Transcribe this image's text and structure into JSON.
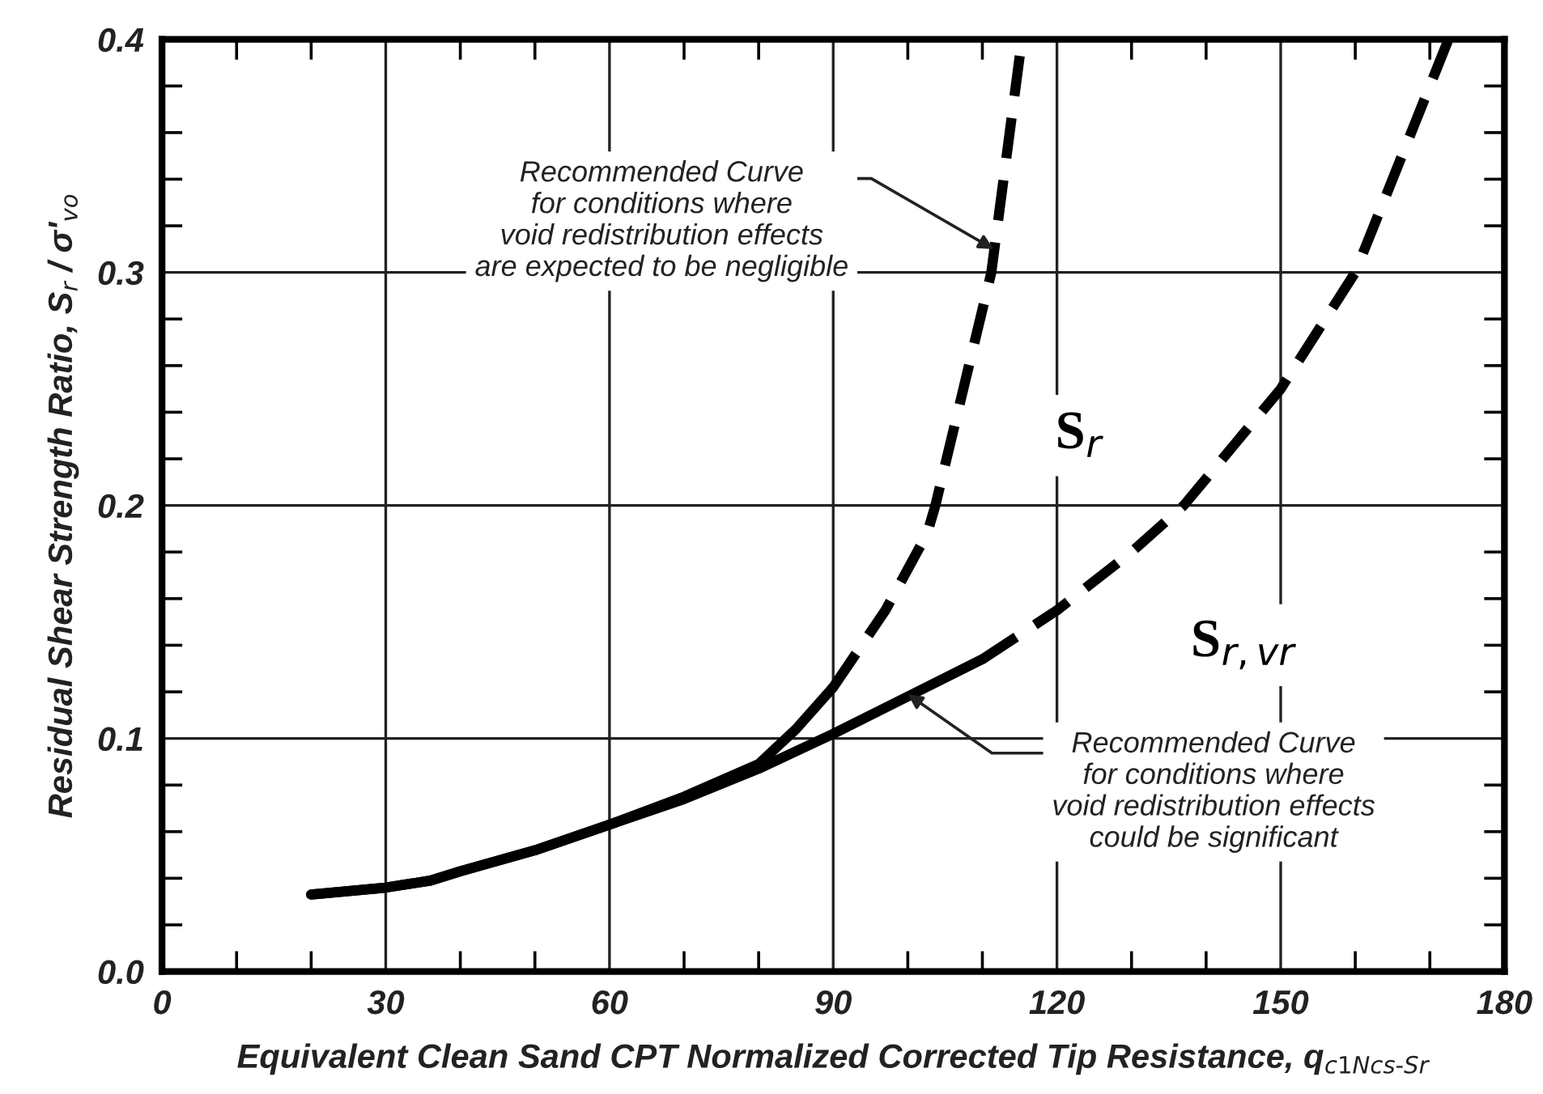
{
  "chart_data": {
    "type": "line",
    "xlabel": "Equivalent Clean Sand CPT Normalized Corrected Tip Resistance, q$_{c1Ncs‐Sr}$",
    "ylabel": "Residual Shear Strength Ratio, S$_{r}$ / σ'$_{vo}$",
    "xlim": [
      0,
      180
    ],
    "ylim": [
      0.0,
      0.4
    ],
    "xticks": [
      0,
      30,
      60,
      90,
      120,
      150,
      180
    ],
    "yticks": [
      {
        "value": 0.0,
        "label": "0.0"
      },
      0.1,
      0.2,
      0.3,
      0.4
    ],
    "grid": true,
    "legend": false,
    "series": [
      {
        "color": "#000000",
        "line_style": "solid",
        "x": [
          20,
          30,
          36,
          40,
          50,
          60,
          70,
          80,
          85,
          90
        ],
        "values": [
          0.033,
          0.036,
          0.039,
          0.043,
          0.052,
          0.063,
          0.075,
          0.089,
          0.104,
          0.122
        ]
      },
      {
        "color": "#000000",
        "line_style": "dashed",
        "x": [
          90,
          97,
          102.6,
          103.7,
          111.2,
          115.3
        ],
        "values": [
          0.122,
          0.155,
          0.188,
          0.2,
          0.3,
          0.4
        ]
      },
      {
        "color": "#000000",
        "line_style": "solid",
        "x": [
          20,
          30,
          36,
          40,
          50,
          60,
          70,
          80,
          90,
          100,
          110
        ],
        "values": [
          0.033,
          0.036,
          0.039,
          0.043,
          0.052,
          0.063,
          0.074,
          0.087,
          0.102,
          0.118,
          0.134
        ]
      },
      {
        "color": "#000000",
        "line_style": "dashed",
        "x": [
          110,
          120,
          130,
          137,
          150,
          160,
          172.5
        ],
        "values": [
          0.134,
          0.155,
          0.18,
          0.2,
          0.25,
          0.3,
          0.4
        ]
      }
    ],
    "annotations": [
      {
        "text": "Recommended Curve\nfor conditions where\nvoid redistribution effects\nare expected to be negligible",
        "x": 111.5,
        "y": 0.31
      },
      {
        "text": "Recommended Curve\nfor conditions where\nvoid redistribution effects\ncould be significant",
        "x": 100,
        "y": 0.119
      },
      "S$_{r}$",
      "S$_{r,vr}$"
    ]
  }
}
